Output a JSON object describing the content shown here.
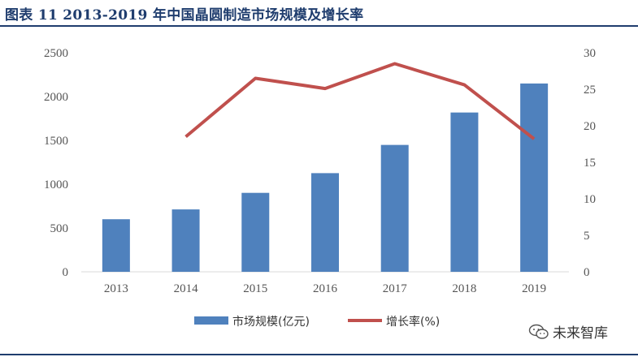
{
  "header": {
    "title": "图表 11    2013-2019 年中国晶圆制造市场规模及增长率"
  },
  "watermark": {
    "text": "未来智库",
    "icon": "wechat-icon"
  },
  "chart_data": {
    "type": "bar+line",
    "title": "2013-2019 年中国晶圆制造市场规模及增长率",
    "categories": [
      "2013",
      "2014",
      "2015",
      "2016",
      "2017",
      "2018",
      "2019"
    ],
    "series": [
      {
        "name": "市场规模(亿元)",
        "type": "bar",
        "axis": "left",
        "color": "#4f81bd",
        "values": [
          600,
          712,
          901,
          1126,
          1448,
          1818,
          2149
        ]
      },
      {
        "name": "增长率(%)",
        "type": "line",
        "axis": "right",
        "color": "#c0504d",
        "values": [
          null,
          18.5,
          26.5,
          25.1,
          28.5,
          25.6,
          18.2
        ]
      }
    ],
    "y_left": {
      "min": 0,
      "max": 2500,
      "ticks": [
        "0",
        "500",
        "1000",
        "1500",
        "2000",
        "2500"
      ]
    },
    "y_right": {
      "min": 0,
      "max": 30,
      "ticks": [
        "0",
        "5",
        "10",
        "15",
        "20",
        "25",
        "30"
      ]
    },
    "grid": false,
    "legend_position": "bottom-center"
  }
}
